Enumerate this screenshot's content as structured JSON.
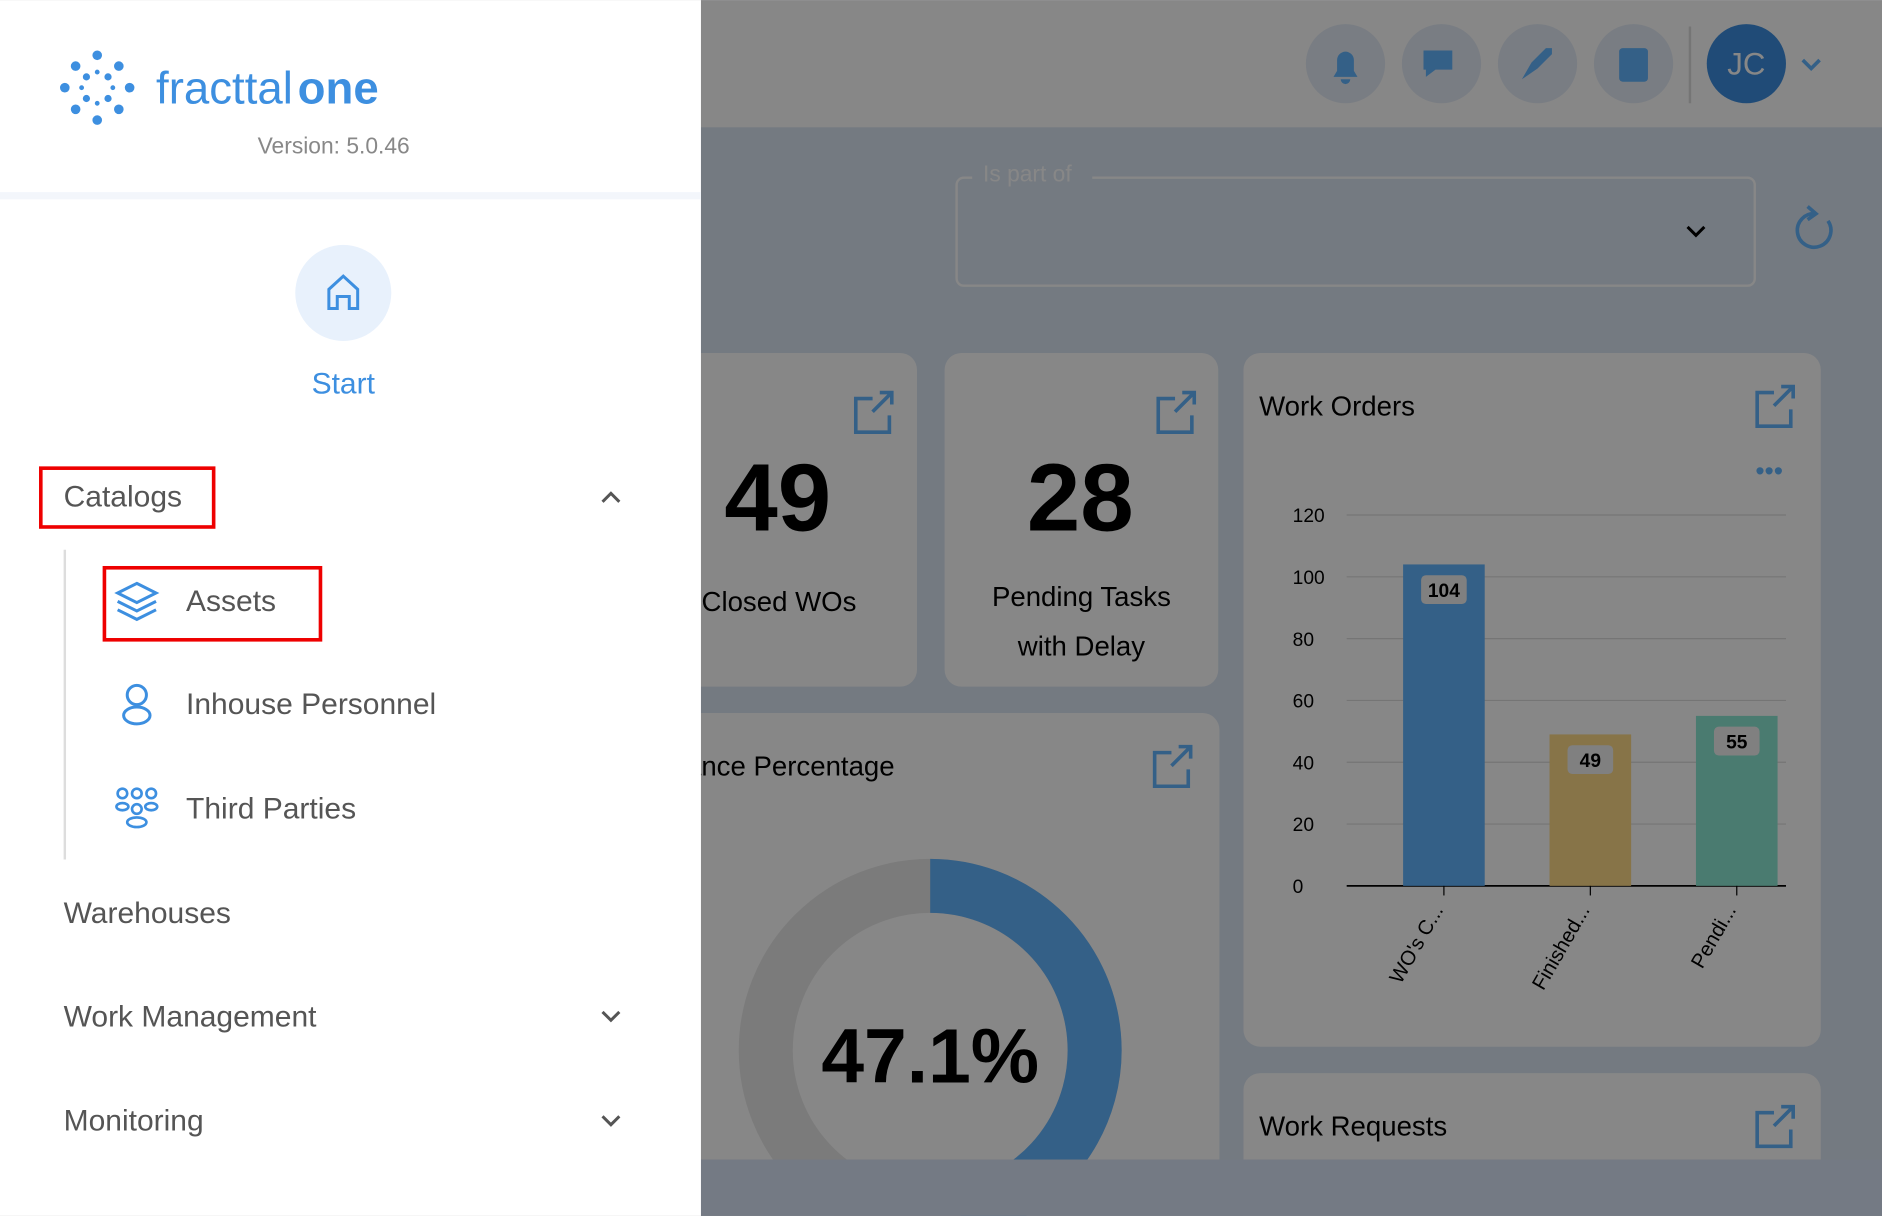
{
  "sidebar": {
    "brand_main": "fracttal",
    "brand_accent": "one",
    "version": "Version: 5.0.46",
    "start": "Start",
    "menu": [
      {
        "label": "Catalogs",
        "children": [
          "Assets",
          "Inhouse Personnel",
          "Third Parties"
        ]
      },
      {
        "label": "Warehouses"
      },
      {
        "label": "Work Management"
      },
      {
        "label": "Monitoring"
      }
    ]
  },
  "header": {
    "avatar": "JC"
  },
  "filter": {
    "label": "Is part of"
  },
  "cards": [
    {
      "value": "49",
      "label": "Closed WOs"
    },
    {
      "value": "28",
      "label_lines": [
        "Pending Tasks",
        "with Delay"
      ]
    }
  ],
  "compliance": {
    "title": "Compliance Percentage",
    "value": 47.1,
    "value_label": "47.1%"
  },
  "work_orders_chart": {
    "type": "bar",
    "title": "Work Orders",
    "categories": [
      "WO's C...",
      "Finished...",
      "Pendi..."
    ],
    "values": [
      104,
      49,
      55
    ],
    "colors": [
      "#62b5ff",
      "#ffdb88",
      "#8ce9d3"
    ],
    "ylim": [
      0,
      120
    ],
    "yticks": [
      0,
      20,
      40,
      60,
      80,
      100,
      120
    ],
    "grid": true
  },
  "work_requests": {
    "title": "Work Requests"
  }
}
